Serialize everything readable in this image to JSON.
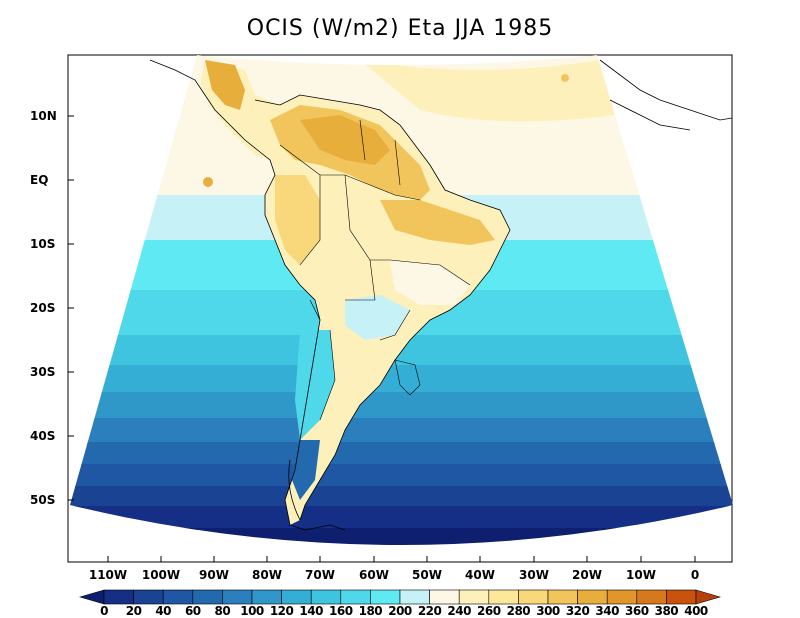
{
  "title": "OCIS (W/m2) Eta JJA 1985",
  "lat_labels": [
    "10N",
    "EQ",
    "10S",
    "20S",
    "30S",
    "40S",
    "50S"
  ],
  "lon_labels": [
    "110W",
    "100W",
    "90W",
    "80W",
    "70W",
    "60W",
    "50W",
    "40W",
    "30W",
    "20W",
    "10W",
    "0"
  ],
  "colorbar": {
    "levels": [
      "0",
      "20",
      "40",
      "60",
      "80",
      "100",
      "120",
      "140",
      "160",
      "180",
      "200",
      "220",
      "240",
      "260",
      "280",
      "300",
      "320",
      "340",
      "360",
      "380",
      "400"
    ],
    "colors": [
      "#0d1f6e",
      "#142f85",
      "#1b4394",
      "#1f57a4",
      "#2269ad",
      "#2a7fbc",
      "#2f98c8",
      "#34aed4",
      "#3ec4df",
      "#4fd8ea",
      "#5fe9f2",
      "#c5f1f7",
      "#fdf8e6",
      "#fdf0bb",
      "#fce79a",
      "#f8d87a",
      "#f2c55c",
      "#e8ae3c",
      "#e1962c",
      "#d6781c",
      "#c9520d",
      "#b5400a"
    ]
  },
  "map_data": {
    "projection": "lambert-conformal",
    "lon_range": [
      -115,
      5
    ],
    "lat_range": [
      -58,
      14
    ]
  }
}
